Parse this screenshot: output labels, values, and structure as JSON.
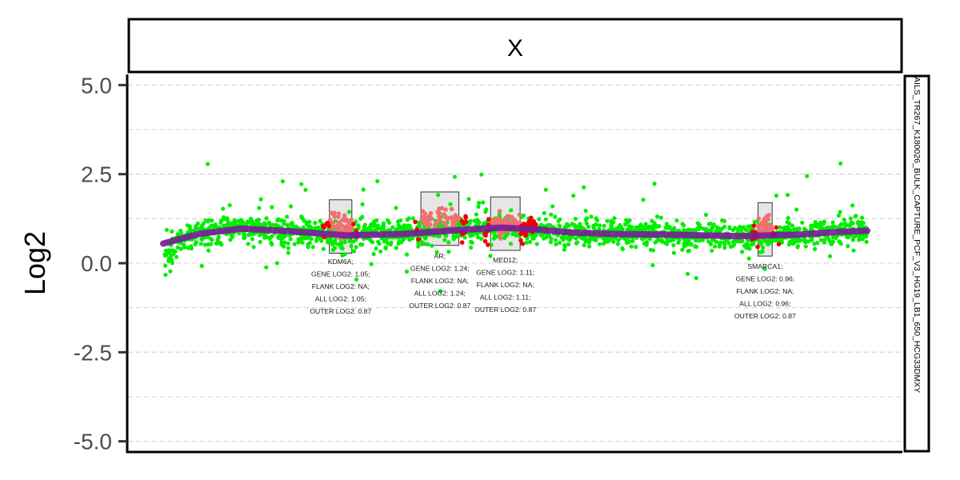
{
  "chart_data": {
    "type": "scatter",
    "title": "",
    "facet_label": "X",
    "sample_label": "AILS_TR267_K180026_BULK_CAPTURE_PCF_V3_HG19_LB1_650_HCG33DMXY",
    "xlabel": "",
    "ylabel": "Log2",
    "ylim": [
      -5.3,
      5.3
    ],
    "yticks": [
      5.0,
      2.5,
      0.0,
      -2.5,
      -5.0
    ],
    "ytick_labels": [
      "5.0",
      "2.5",
      "0.0",
      "-2.5",
      "-5.0"
    ],
    "grid": true,
    "colors": {
      "background_points": "#00ee00",
      "gene_points": "#f07070",
      "flank_points": "#ee0000",
      "trend_line": "#7a1a9a",
      "gene_box_fill": "#e6e6e6"
    },
    "trend": {
      "x": [
        0.0,
        0.05,
        0.11,
        0.18,
        0.26,
        0.34,
        0.42,
        0.48,
        0.53,
        0.58,
        0.64,
        0.72,
        0.82,
        0.9,
        0.96,
        1.0
      ],
      "y": [
        0.55,
        0.82,
        0.97,
        0.9,
        0.78,
        0.82,
        0.93,
        1.0,
        0.95,
        0.86,
        0.82,
        0.8,
        0.76,
        0.8,
        0.88,
        0.91
      ]
    },
    "genes": [
      {
        "name": "KDM6A",
        "x_start": 0.236,
        "x_end": 0.268,
        "box_y": [
          0.28,
          1.78
        ],
        "gene_log2": "1.05",
        "flank_log2": "NA",
        "all_log2": "1.05",
        "outer_log2": "0.87",
        "annotation": [
          "KDM6A;",
          "GENE LOG2: 1.05;",
          "FLANK LOG2: NA;",
          "ALL LOG2: 1.05;",
          "OUTER LOG2: 0.87"
        ]
      },
      {
        "name": "AR",
        "x_start": 0.366,
        "x_end": 0.42,
        "box_y": [
          0.5,
          2.0
        ],
        "gene_log2": "1.24",
        "flank_log2": "NA",
        "all_log2": "1.24",
        "outer_log2": "0.87",
        "annotation": [
          "AR;",
          "GENE LOG2: 1.24;",
          "FLANK LOG2: NA;",
          "ALL LOG2: 1.24;",
          "OUTER LOG2: 0.87"
        ]
      },
      {
        "name": "MED12",
        "x_start": 0.465,
        "x_end": 0.507,
        "box_y": [
          0.36,
          1.86
        ],
        "gene_log2": "1.11",
        "flank_log2": "NA",
        "all_log2": "1.11",
        "outer_log2": "0.87",
        "annotation": [
          "MED12;",
          "GENE LOG2: 1.11;",
          "FLANK LOG2: NA;",
          "ALL LOG2: 1.11;",
          "OUTER LOG2: 0.87"
        ]
      },
      {
        "name": "SMARCA1",
        "x_start": 0.845,
        "x_end": 0.865,
        "box_y": [
          0.2,
          1.7
        ],
        "gene_log2": "0.96",
        "flank_log2": "NA",
        "all_log2": "0.96",
        "outer_log2": "0.87",
        "annotation": [
          "SMARCA1;",
          "GENE LOG2: 0.96;",
          "FLANK LOG2: NA;",
          "ALL LOG2: 0.96;",
          "OUTER LOG2: 0.87"
        ]
      }
    ],
    "background_points": {
      "count": 1900,
      "x_range": [
        0.0,
        1.0
      ],
      "baseline": 0.85
    }
  }
}
